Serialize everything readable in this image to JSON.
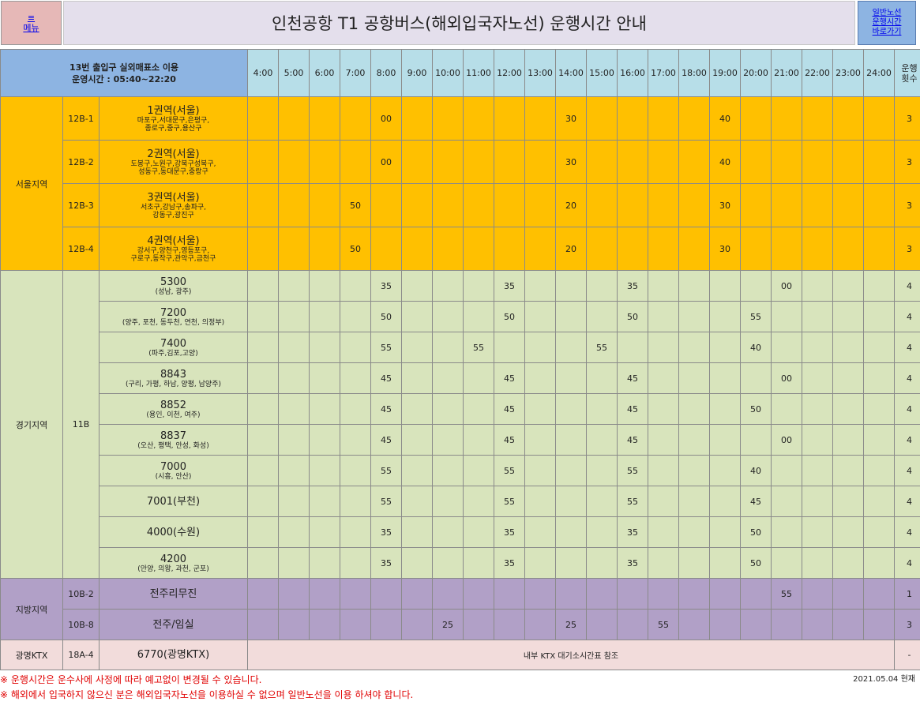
{
  "header": {
    "menu_icon": "≡",
    "menu_label": "메뉴",
    "title": "인천공항 T1 공항버스(해외입국자노선) 운행시간 안내",
    "link_lines": [
      "일반노선",
      "운행시간",
      "바로가기"
    ]
  },
  "table_header": {
    "info_line1": "13번 출입구 실외매표소 이용",
    "info_line2": "운영시간 : 05:40~22:20",
    "hours": [
      "4:00",
      "5:00",
      "6:00",
      "7:00",
      "8:00",
      "9:00",
      "10:00",
      "11:00",
      "12:00",
      "13:00",
      "14:00",
      "15:00",
      "16:00",
      "17:00",
      "18:00",
      "19:00",
      "20:00",
      "21:00",
      "22:00",
      "23:00",
      "24:00"
    ],
    "count_label": "운행횟수"
  },
  "regions": [
    {
      "key": "seoul",
      "name": "서울지역",
      "rows": [
        {
          "code": "12B-1",
          "name": "1권역(서울)",
          "sub": [
            "마포구,서대문구,은평구,",
            "종로구,중구,용산구"
          ],
          "times": {
            "8:00": "00",
            "14:00": "30",
            "19:00": "40"
          },
          "count": "3"
        },
        {
          "code": "12B-2",
          "name": "2권역(서울)",
          "sub": [
            "도봉구,노원구,강북구성북구,",
            "성동구,동대문구,중랑구"
          ],
          "times": {
            "8:00": "00",
            "14:00": "30",
            "19:00": "40"
          },
          "count": "3"
        },
        {
          "code": "12B-3",
          "name": "3권역(서울)",
          "sub": [
            "서초구,강남구,송파구,",
            "강동구,광진구"
          ],
          "times": {
            "7:00": "50",
            "14:00": "20",
            "19:00": "30"
          },
          "count": "3"
        },
        {
          "code": "12B-4",
          "name": "4권역(서울)",
          "sub": [
            "강서구,양천구,영등포구,",
            "구로구,동작구,관악구,금천구"
          ],
          "times": {
            "7:00": "50",
            "14:00": "20",
            "19:00": "30"
          },
          "count": "3"
        }
      ]
    },
    {
      "key": "gyeonggi",
      "name": "경기지역",
      "code": "11B",
      "rows": [
        {
          "name": "5300",
          "sub": [
            "(성남, 광주)"
          ],
          "times": {
            "8:00": "35",
            "12:00": "35",
            "16:00": "35",
            "21:00": "00"
          },
          "count": "4"
        },
        {
          "name": "7200",
          "sub": [
            "(양주, 포천, 동두천, 연천, 의정부)"
          ],
          "times": {
            "8:00": "50",
            "12:00": "50",
            "16:00": "50",
            "20:00": "55"
          },
          "count": "4"
        },
        {
          "name": "7400",
          "sub": [
            "(파주,김포,고양)"
          ],
          "times": {
            "8:00": "55",
            "11:00": "55",
            "15:00": "55",
            "20:00": "40"
          },
          "count": "4"
        },
        {
          "name": "8843",
          "sub": [
            "(구리, 가평, 하남, 양평, 남양주)"
          ],
          "times": {
            "8:00": "45",
            "12:00": "45",
            "16:00": "45",
            "21:00": "00"
          },
          "count": "4"
        },
        {
          "name": "8852",
          "sub": [
            "(용인, 이천, 여주)"
          ],
          "times": {
            "8:00": "45",
            "12:00": "45",
            "16:00": "45",
            "20:00": "50"
          },
          "count": "4"
        },
        {
          "name": "8837",
          "sub": [
            "(오산, 평택, 안성, 화성)"
          ],
          "times": {
            "8:00": "45",
            "12:00": "45",
            "16:00": "45",
            "21:00": "00"
          },
          "count": "4"
        },
        {
          "name": "7000",
          "sub": [
            "(시흥, 안산)"
          ],
          "times": {
            "8:00": "55",
            "12:00": "55",
            "16:00": "55",
            "20:00": "40"
          },
          "count": "4"
        },
        {
          "name": "7001(부천)",
          "sub": [],
          "times": {
            "8:00": "55",
            "12:00": "55",
            "16:00": "55",
            "20:00": "45"
          },
          "count": "4"
        },
        {
          "name": "4000(수원)",
          "sub": [],
          "times": {
            "8:00": "35",
            "12:00": "35",
            "16:00": "35",
            "20:00": "50"
          },
          "count": "4"
        },
        {
          "name": "4200",
          "sub": [
            "(안양, 의왕, 과천, 군포)"
          ],
          "times": {
            "8:00": "35",
            "12:00": "35",
            "16:00": "35",
            "20:00": "50"
          },
          "count": "4"
        }
      ]
    },
    {
      "key": "jibang",
      "name": "지방지역",
      "rows": [
        {
          "code": "10B-2",
          "name": "전주리무진",
          "sub": [],
          "times": {
            "21:00": "55"
          },
          "count": "1"
        },
        {
          "code": "10B-8",
          "name": "전주/임실",
          "sub": [],
          "times": {
            "10:00": "25",
            "14:00": "25",
            "17:00": "55"
          },
          "count": "3"
        }
      ]
    },
    {
      "key": "ktx",
      "name": "광명KTX",
      "rows": [
        {
          "code": "18A-4",
          "name": "6770(광명KTX)",
          "merged_note": "내부 KTX 대기소시간표 참조",
          "count": "-"
        }
      ]
    }
  ],
  "footer": {
    "notes": [
      "※ 운행시간은 운수사에 사정에 따라 예고없이 변경될 수 있습니다.",
      "※ 해외에서 입국하지 않으신 분은 해외입국자노선을 이용하실 수 없으며 일반노선을 이용 하셔야 합니다."
    ],
    "date": "2021.05.04 현재"
  }
}
